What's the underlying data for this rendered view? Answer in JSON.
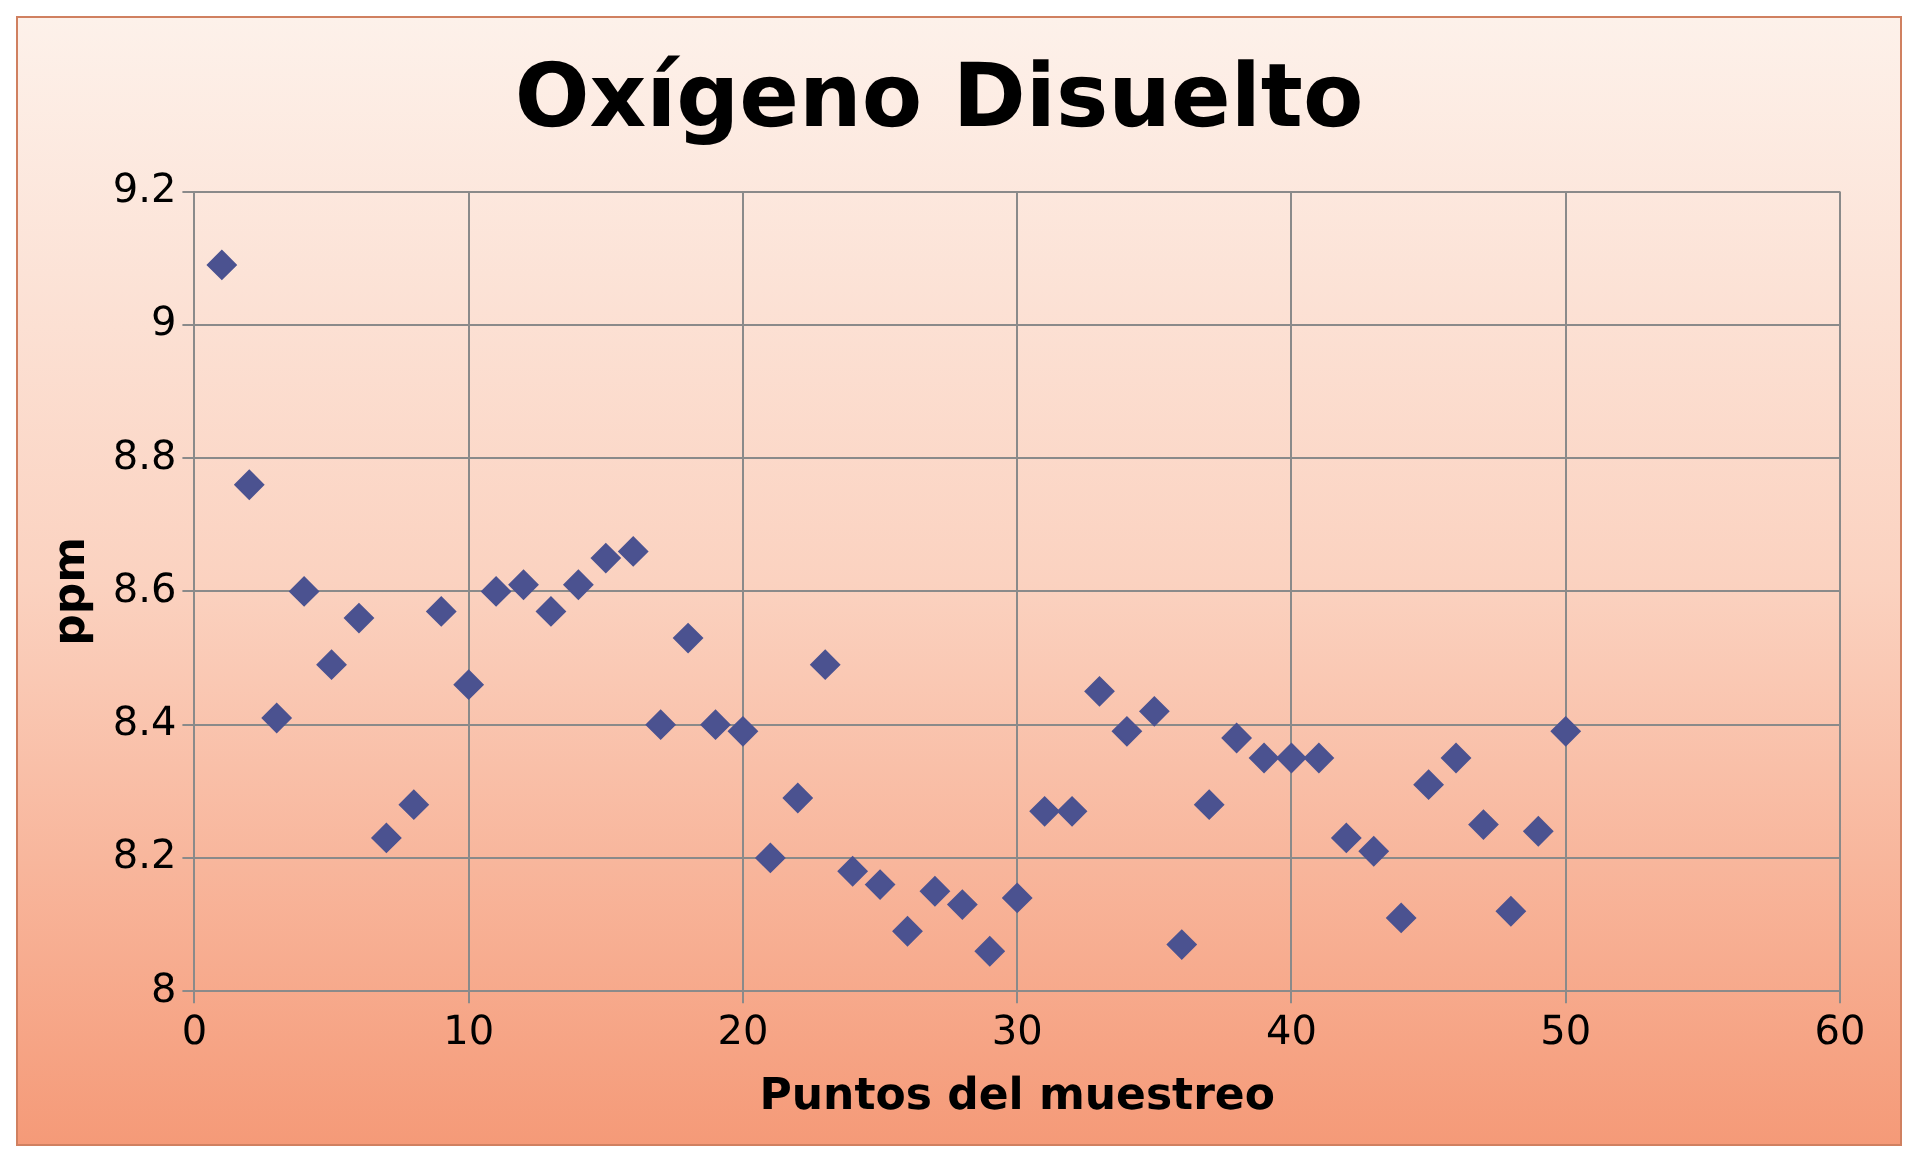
{
  "chart_data": {
    "type": "scatter",
    "title": "Oxígeno Disuelto",
    "xlabel": "Puntos del muestreo",
    "ylabel": "ppm",
    "x": [
      1,
      2,
      3,
      4,
      5,
      6,
      7,
      8,
      9,
      10,
      11,
      12,
      13,
      14,
      15,
      16,
      17,
      18,
      19,
      20,
      21,
      22,
      23,
      24,
      25,
      26,
      27,
      28,
      29,
      30,
      31,
      32,
      33,
      34,
      35,
      36,
      37,
      38,
      39,
      40,
      41,
      42,
      43,
      44,
      45,
      46,
      47,
      48,
      49,
      50
    ],
    "values": [
      9.09,
      8.76,
      8.41,
      8.6,
      8.49,
      8.56,
      8.23,
      8.28,
      8.57,
      8.46,
      8.6,
      8.61,
      8.57,
      8.61,
      8.65,
      8.66,
      8.4,
      8.53,
      8.4,
      8.39,
      8.2,
      8.29,
      8.49,
      8.18,
      8.16,
      8.09,
      8.15,
      8.13,
      8.06,
      8.14,
      8.27,
      8.27,
      8.45,
      8.39,
      8.42,
      8.07,
      8.28,
      8.38,
      8.35,
      8.35,
      8.35,
      8.23,
      8.21,
      8.11,
      8.31,
      8.35,
      8.25,
      8.12,
      8.24,
      8.39
    ],
    "color": "#4b5290",
    "marker": "diamond",
    "grid": true,
    "legend": false,
    "xlim": [
      0,
      60
    ],
    "xticks": [
      0,
      10,
      20,
      30,
      40,
      50,
      60
    ],
    "ylim": [
      8,
      9.2
    ],
    "yticks": [
      {
        "value": 8,
        "label": "8"
      },
      {
        "value": 8.2,
        "label": "8.2"
      },
      {
        "value": 8.4,
        "label": "8.4"
      },
      {
        "value": 8.6,
        "label": "8.6"
      },
      {
        "value": 8.8,
        "label": "8.8"
      },
      {
        "value": 9,
        "label": "9"
      },
      {
        "value": 9.2,
        "label": "9.2"
      }
    ]
  }
}
